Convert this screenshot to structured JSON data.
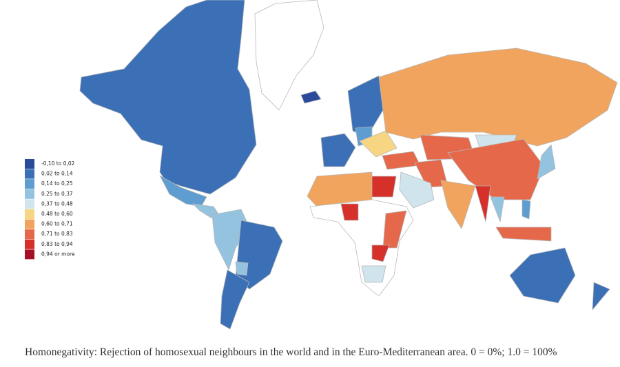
{
  "legend": {
    "items": [
      {
        "label": "-0,10 to 0,02",
        "color": "#2b4a99"
      },
      {
        "label": "0,02 to 0,14",
        "color": "#3b6fb6"
      },
      {
        "label": "0,14 to 0,25",
        "color": "#5f9dd0"
      },
      {
        "label": "0,25 to 0,37",
        "color": "#93c3df"
      },
      {
        "label": "0,37 to 0,48",
        "color": "#cfe4ec"
      },
      {
        "label": "0,48 to 0,60",
        "color": "#f6d683"
      },
      {
        "label": "0,60 to 0,71",
        "color": "#f1a45d"
      },
      {
        "label": "0,71 to 0,83",
        "color": "#e6684a"
      },
      {
        "label": "0,83 to 0,94",
        "color": "#d6302b"
      },
      {
        "label": "0,94 or more",
        "color": "#a50f27"
      }
    ]
  },
  "caption": "Homonegativity: Rejection of homosexual neighbours in the world and in the Euro-Mediterranean area. 0 = 0%; 1.0 = 100%"
}
